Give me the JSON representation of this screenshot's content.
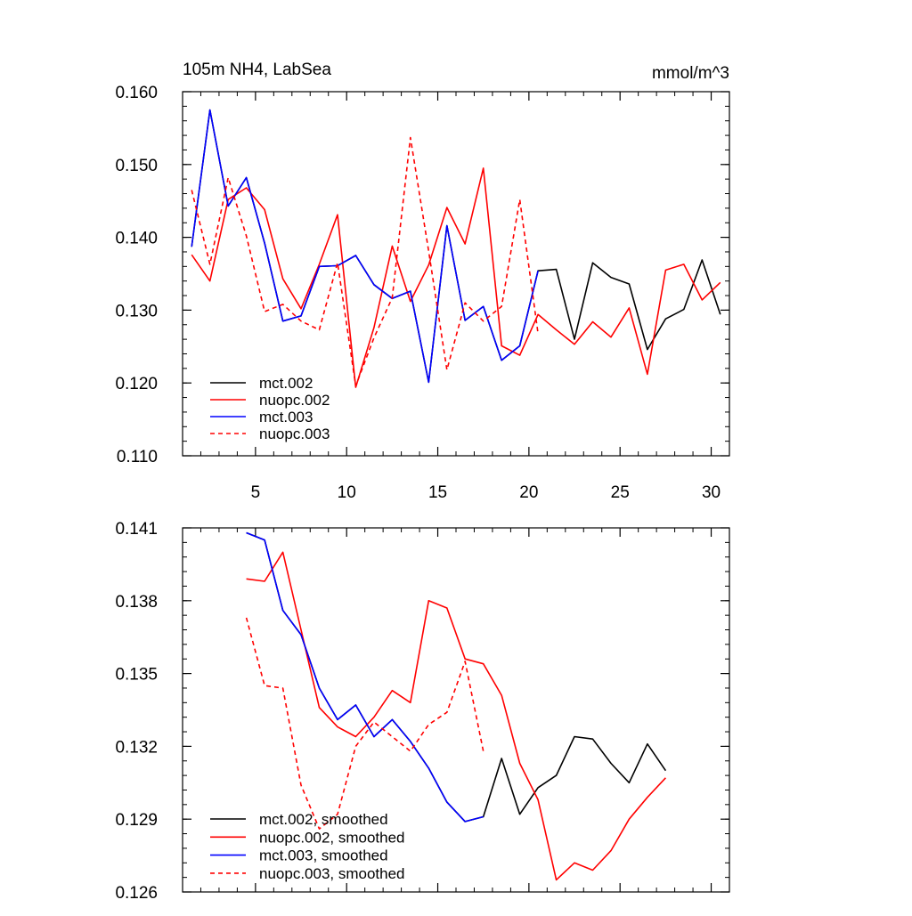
{
  "chart_data": [
    {
      "id": "top",
      "type": "line",
      "title": "105m NH4, LabSea",
      "units": "mmol/m^3",
      "xlim": [
        1,
        31
      ],
      "ylim": [
        0.11,
        0.16
      ],
      "x_ticks": [
        5,
        10,
        15,
        20,
        25,
        30
      ],
      "x_tick_labels": [
        "5",
        "10",
        "15",
        "20",
        "25",
        "30"
      ],
      "y_ticks": [
        0.11,
        0.12,
        0.13,
        0.14,
        0.15,
        0.16
      ],
      "y_tick_labels": [
        "0.110",
        "0.120",
        "0.130",
        "0.140",
        "0.150",
        "0.160"
      ],
      "x_minor_step": 1,
      "y_minor_step": 0.002,
      "legend_position": "bottom-left",
      "series": [
        {
          "name": "mct.002",
          "color": "#000000",
          "dash": false,
          "x": [
            1.5,
            2.5,
            3.5,
            4.5,
            5.5,
            6.5,
            7.5,
            8.5,
            9.5,
            10.5,
            11.5,
            12.5,
            13.5,
            14.5,
            15.5,
            16.5,
            17.5,
            18.5,
            19.5,
            20.5,
            21.5,
            22.5,
            23.5,
            24.5,
            25.5,
            26.5,
            27.5,
            28.5,
            29.5,
            30.5
          ],
          "values": [
            0.1387,
            0.1575,
            0.1443,
            0.1482,
            0.1392,
            0.1285,
            0.1292,
            0.136,
            0.1361,
            0.1375,
            0.1335,
            0.1316,
            0.1326,
            0.1201,
            0.1416,
            0.1286,
            0.1305,
            0.1231,
            0.1251,
            0.1354,
            0.1356,
            0.126,
            0.1365,
            0.1345,
            0.1336,
            0.1246,
            0.1288,
            0.1301,
            0.1369,
            0.1294
          ]
        },
        {
          "name": "nuopc.002",
          "color": "#ff0000",
          "dash": false,
          "x": [
            1.5,
            2.5,
            3.5,
            4.5,
            5.5,
            6.5,
            7.5,
            8.5,
            9.5,
            10.5,
            11.5,
            12.5,
            13.5,
            14.5,
            15.5,
            16.5,
            17.5,
            18.5,
            19.5,
            20.5,
            21.5,
            22.5,
            23.5,
            24.5,
            25.5,
            26.5,
            27.5,
            28.5,
            29.5,
            30.5
          ],
          "values": [
            0.1376,
            0.134,
            0.1452,
            0.1468,
            0.1438,
            0.1343,
            0.1302,
            0.1363,
            0.1431,
            0.1194,
            0.1276,
            0.1388,
            0.1312,
            0.1362,
            0.1441,
            0.1391,
            0.1495,
            0.1251,
            0.1238,
            0.1294,
            0.1273,
            0.1253,
            0.1284,
            0.1263,
            0.1303,
            0.1212,
            0.1355,
            0.1363,
            0.1314,
            0.1338
          ]
        },
        {
          "name": "mct.003",
          "color": "#0000ff",
          "dash": false,
          "x": [
            1.5,
            2.5,
            3.5,
            4.5,
            5.5,
            6.5,
            7.5,
            8.5,
            9.5,
            10.5,
            11.5,
            12.5,
            13.5,
            14.5,
            15.5,
            16.5,
            17.5,
            18.5,
            19.5,
            20.5
          ],
          "values": [
            0.1387,
            0.1575,
            0.1443,
            0.1482,
            0.1392,
            0.1285,
            0.1292,
            0.136,
            0.1361,
            0.1375,
            0.1335,
            0.1316,
            0.1326,
            0.1201,
            0.1416,
            0.1286,
            0.1305,
            0.1231,
            0.1251,
            0.1354
          ]
        },
        {
          "name": "nuopc.003",
          "color": "#ff0000",
          "dash": true,
          "x": [
            1.5,
            2.5,
            3.5,
            4.5,
            5.5,
            6.5,
            7.5,
            8.5,
            9.5,
            10.5,
            11.5,
            12.5,
            13.5,
            14.5,
            15.5,
            16.5,
            17.5,
            18.5,
            19.5,
            20.5
          ],
          "values": [
            0.1465,
            0.1363,
            0.1482,
            0.1402,
            0.1298,
            0.1308,
            0.1285,
            0.1273,
            0.1365,
            0.1196,
            0.1262,
            0.1317,
            0.1537,
            0.1381,
            0.1218,
            0.131,
            0.1285,
            0.1305,
            0.1452,
            0.1268
          ]
        }
      ]
    },
    {
      "id": "bottom",
      "type": "line",
      "title": "",
      "units": "",
      "xlim": [
        1,
        31
      ],
      "ylim": [
        0.126,
        0.141
      ],
      "x_ticks": [
        5,
        10,
        15,
        20,
        25,
        30
      ],
      "x_tick_labels": [
        "",
        "",
        "",
        "",
        "",
        ""
      ],
      "y_ticks": [
        0.126,
        0.129,
        0.132,
        0.135,
        0.138,
        0.141
      ],
      "y_tick_labels": [
        "0.126",
        "0.129",
        "0.132",
        "0.135",
        "0.138",
        "0.141"
      ],
      "x_minor_step": 1,
      "y_minor_step": 0.0006,
      "legend_position": "bottom-left",
      "series": [
        {
          "name": "mct.002, smoothed",
          "color": "#000000",
          "dash": false,
          "x": [
            4.5,
            5.5,
            6.5,
            7.5,
            8.5,
            9.5,
            10.5,
            11.5,
            12.5,
            13.5,
            14.5,
            15.5,
            16.5,
            17.5,
            18.5,
            19.5,
            20.5,
            21.5,
            22.5,
            23.5,
            24.5,
            25.5,
            26.5,
            27.5
          ],
          "values": [
            0.1408,
            0.1405,
            0.1376,
            0.1366,
            0.1344,
            0.1331,
            0.1337,
            0.1324,
            0.1331,
            0.1322,
            0.1311,
            0.1297,
            0.1289,
            0.1291,
            0.1315,
            0.1292,
            0.1303,
            0.1308,
            0.1324,
            0.1323,
            0.1313,
            0.1305,
            0.1321,
            0.131
          ]
        },
        {
          "name": "nuopc.002, smoothed",
          "color": "#ff0000",
          "dash": false,
          "x": [
            4.5,
            5.5,
            6.5,
            7.5,
            8.5,
            9.5,
            10.5,
            11.5,
            12.5,
            13.5,
            14.5,
            15.5,
            16.5,
            17.5,
            18.5,
            19.5,
            20.5,
            21.5,
            22.5,
            23.5,
            24.5,
            25.5,
            26.5,
            27.5
          ],
          "values": [
            0.1389,
            0.1388,
            0.14,
            0.1368,
            0.1336,
            0.1328,
            0.1324,
            0.1332,
            0.1343,
            0.1338,
            0.138,
            0.1377,
            0.1356,
            0.1354,
            0.1341,
            0.1313,
            0.1298,
            0.1265,
            0.1272,
            0.1269,
            0.1277,
            0.129,
            0.1299,
            0.1307
          ]
        },
        {
          "name": "mct.003, smoothed",
          "color": "#0000ff",
          "dash": false,
          "x": [
            4.5,
            5.5,
            6.5,
            7.5,
            8.5,
            9.5,
            10.5,
            11.5,
            12.5,
            13.5,
            14.5,
            15.5,
            16.5,
            17.5
          ],
          "values": [
            0.1408,
            0.1405,
            0.1376,
            0.1366,
            0.1344,
            0.1331,
            0.1337,
            0.1324,
            0.1331,
            0.1322,
            0.1311,
            0.1297,
            0.1289,
            0.1291
          ]
        },
        {
          "name": "nuopc.003, smoothed",
          "color": "#ff0000",
          "dash": true,
          "x": [
            4.5,
            5.5,
            6.5,
            7.5,
            8.5,
            9.5,
            10.5,
            11.5,
            12.5,
            13.5,
            14.5,
            15.5,
            16.5,
            17.5
          ],
          "values": [
            0.1373,
            0.1345,
            0.1344,
            0.1304,
            0.1286,
            0.1292,
            0.132,
            0.133,
            0.1324,
            0.1318,
            0.1329,
            0.1334,
            0.1355,
            0.1318
          ]
        }
      ]
    }
  ]
}
